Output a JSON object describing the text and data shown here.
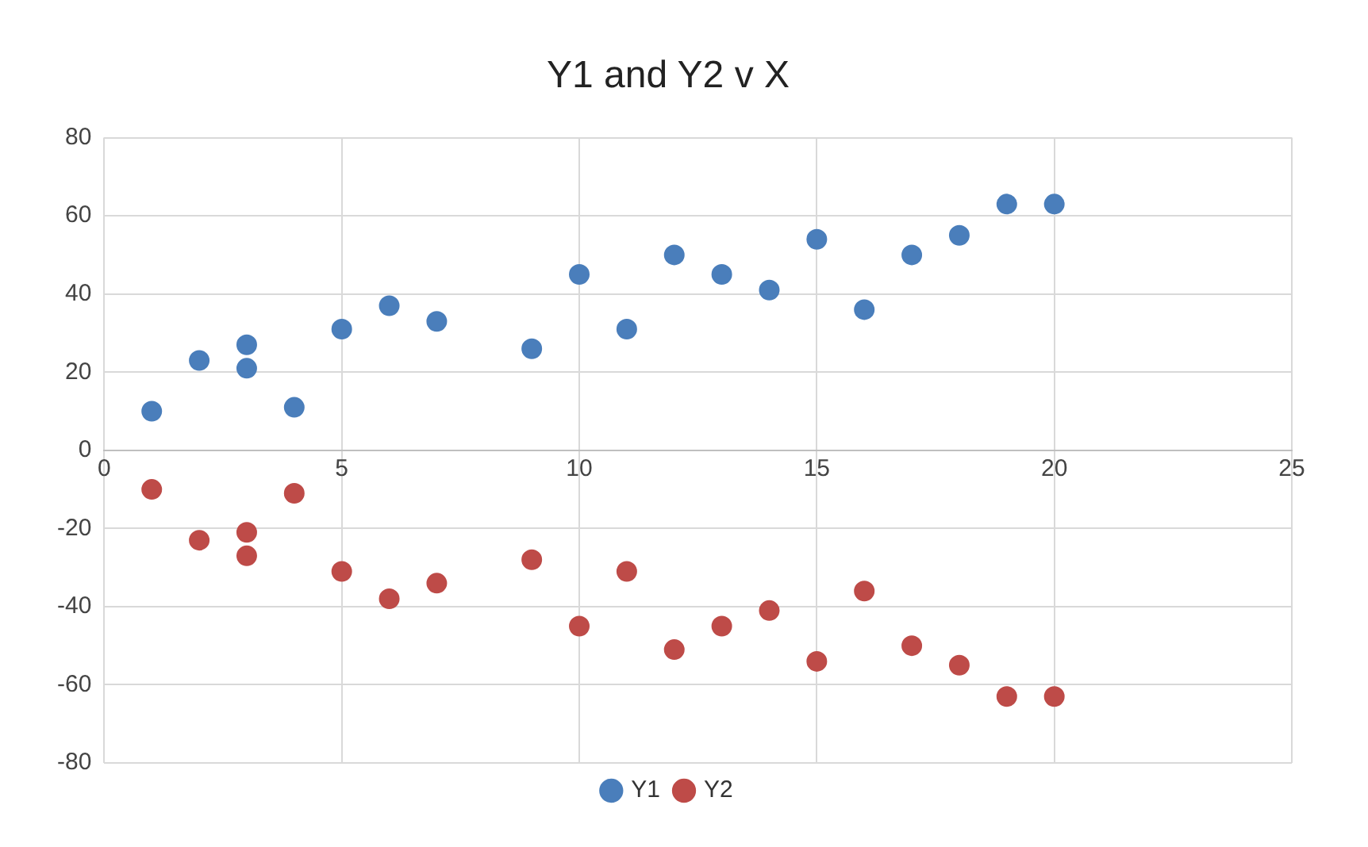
{
  "chart_data": {
    "type": "scatter",
    "title": "Y1 and Y2 v X",
    "x": [
      1,
      2,
      3,
      3,
      4,
      5,
      6,
      7,
      9,
      10,
      11,
      12,
      13,
      14,
      15,
      16,
      17,
      18,
      19,
      20
    ],
    "series": [
      {
        "name": "Y1",
        "color": "#4a7ebb",
        "values": [
          10,
          23,
          27,
          21,
          11,
          31,
          37,
          33,
          26,
          45,
          31,
          50,
          45,
          41,
          54,
          36,
          50,
          55,
          63,
          63
        ]
      },
      {
        "name": "Y2",
        "color": "#be4b48",
        "values": [
          -10,
          -23,
          -21,
          -27,
          -11,
          -31,
          -38,
          -34,
          -28,
          -45,
          -31,
          -51,
          -45,
          -41,
          -54,
          -36,
          -50,
          -55,
          -63,
          -63
        ]
      }
    ],
    "xlim": [
      0,
      25
    ],
    "xticks": [
      0,
      5,
      10,
      15,
      20,
      25
    ],
    "ylim": [
      -80,
      80
    ],
    "yticks": [
      -80,
      -60,
      -40,
      -20,
      0,
      20,
      40,
      60,
      80
    ],
    "grid": true,
    "legend": "bottom",
    "marker": "circle"
  }
}
